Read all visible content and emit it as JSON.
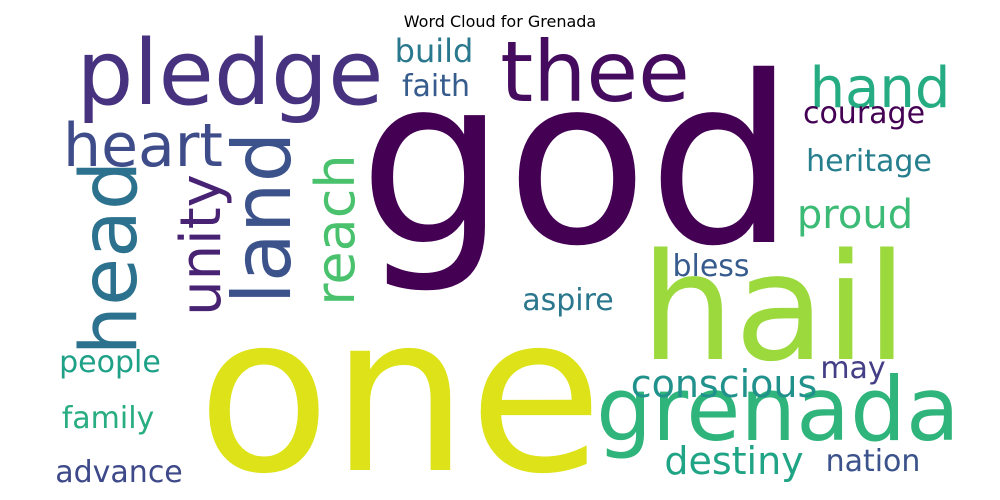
{
  "title": "Word Cloud for Grenada",
  "words": {
    "god": {
      "text": "god",
      "color": "#440154"
    },
    "one": {
      "text": "one",
      "color": "#dde318"
    },
    "hail": {
      "text": "hail",
      "color": "#9bd93c"
    },
    "grenada": {
      "text": "grenada",
      "color": "#2fb47c"
    },
    "pledge": {
      "text": "pledge",
      "color": "#46327e"
    },
    "thee": {
      "text": "thee",
      "color": "#450b5e"
    },
    "hand": {
      "text": "hand",
      "color": "#25ac82"
    },
    "heart": {
      "text": "heart",
      "color": "#3e4c8a"
    },
    "head": {
      "text": "head",
      "color": "#2c728e"
    },
    "unity": {
      "text": "unity",
      "color": "#482374"
    },
    "land": {
      "text": "land",
      "color": "#3b528b"
    },
    "reach": {
      "text": "reach",
      "color": "#4ac16d"
    },
    "build": {
      "text": "build",
      "color": "#2a788e"
    },
    "faith": {
      "text": "faith",
      "color": "#365c8d"
    },
    "courage": {
      "text": "courage",
      "color": "#440154"
    },
    "heritage": {
      "text": "heritage",
      "color": "#277f8e"
    },
    "proud": {
      "text": "proud",
      "color": "#3bbb75"
    },
    "bless": {
      "text": "bless",
      "color": "#375b8d"
    },
    "aspire": {
      "text": "aspire",
      "color": "#2a778e"
    },
    "people": {
      "text": "people",
      "color": "#1fa188"
    },
    "conscious": {
      "text": "conscious",
      "color": "#21918c"
    },
    "may": {
      "text": "may",
      "color": "#433e85"
    },
    "family": {
      "text": "family",
      "color": "#27ad81"
    },
    "destiny": {
      "text": "destiny",
      "color": "#20a486"
    },
    "advance": {
      "text": "advance",
      "color": "#3e4989"
    },
    "nation": {
      "text": "nation",
      "color": "#3b528b"
    }
  }
}
